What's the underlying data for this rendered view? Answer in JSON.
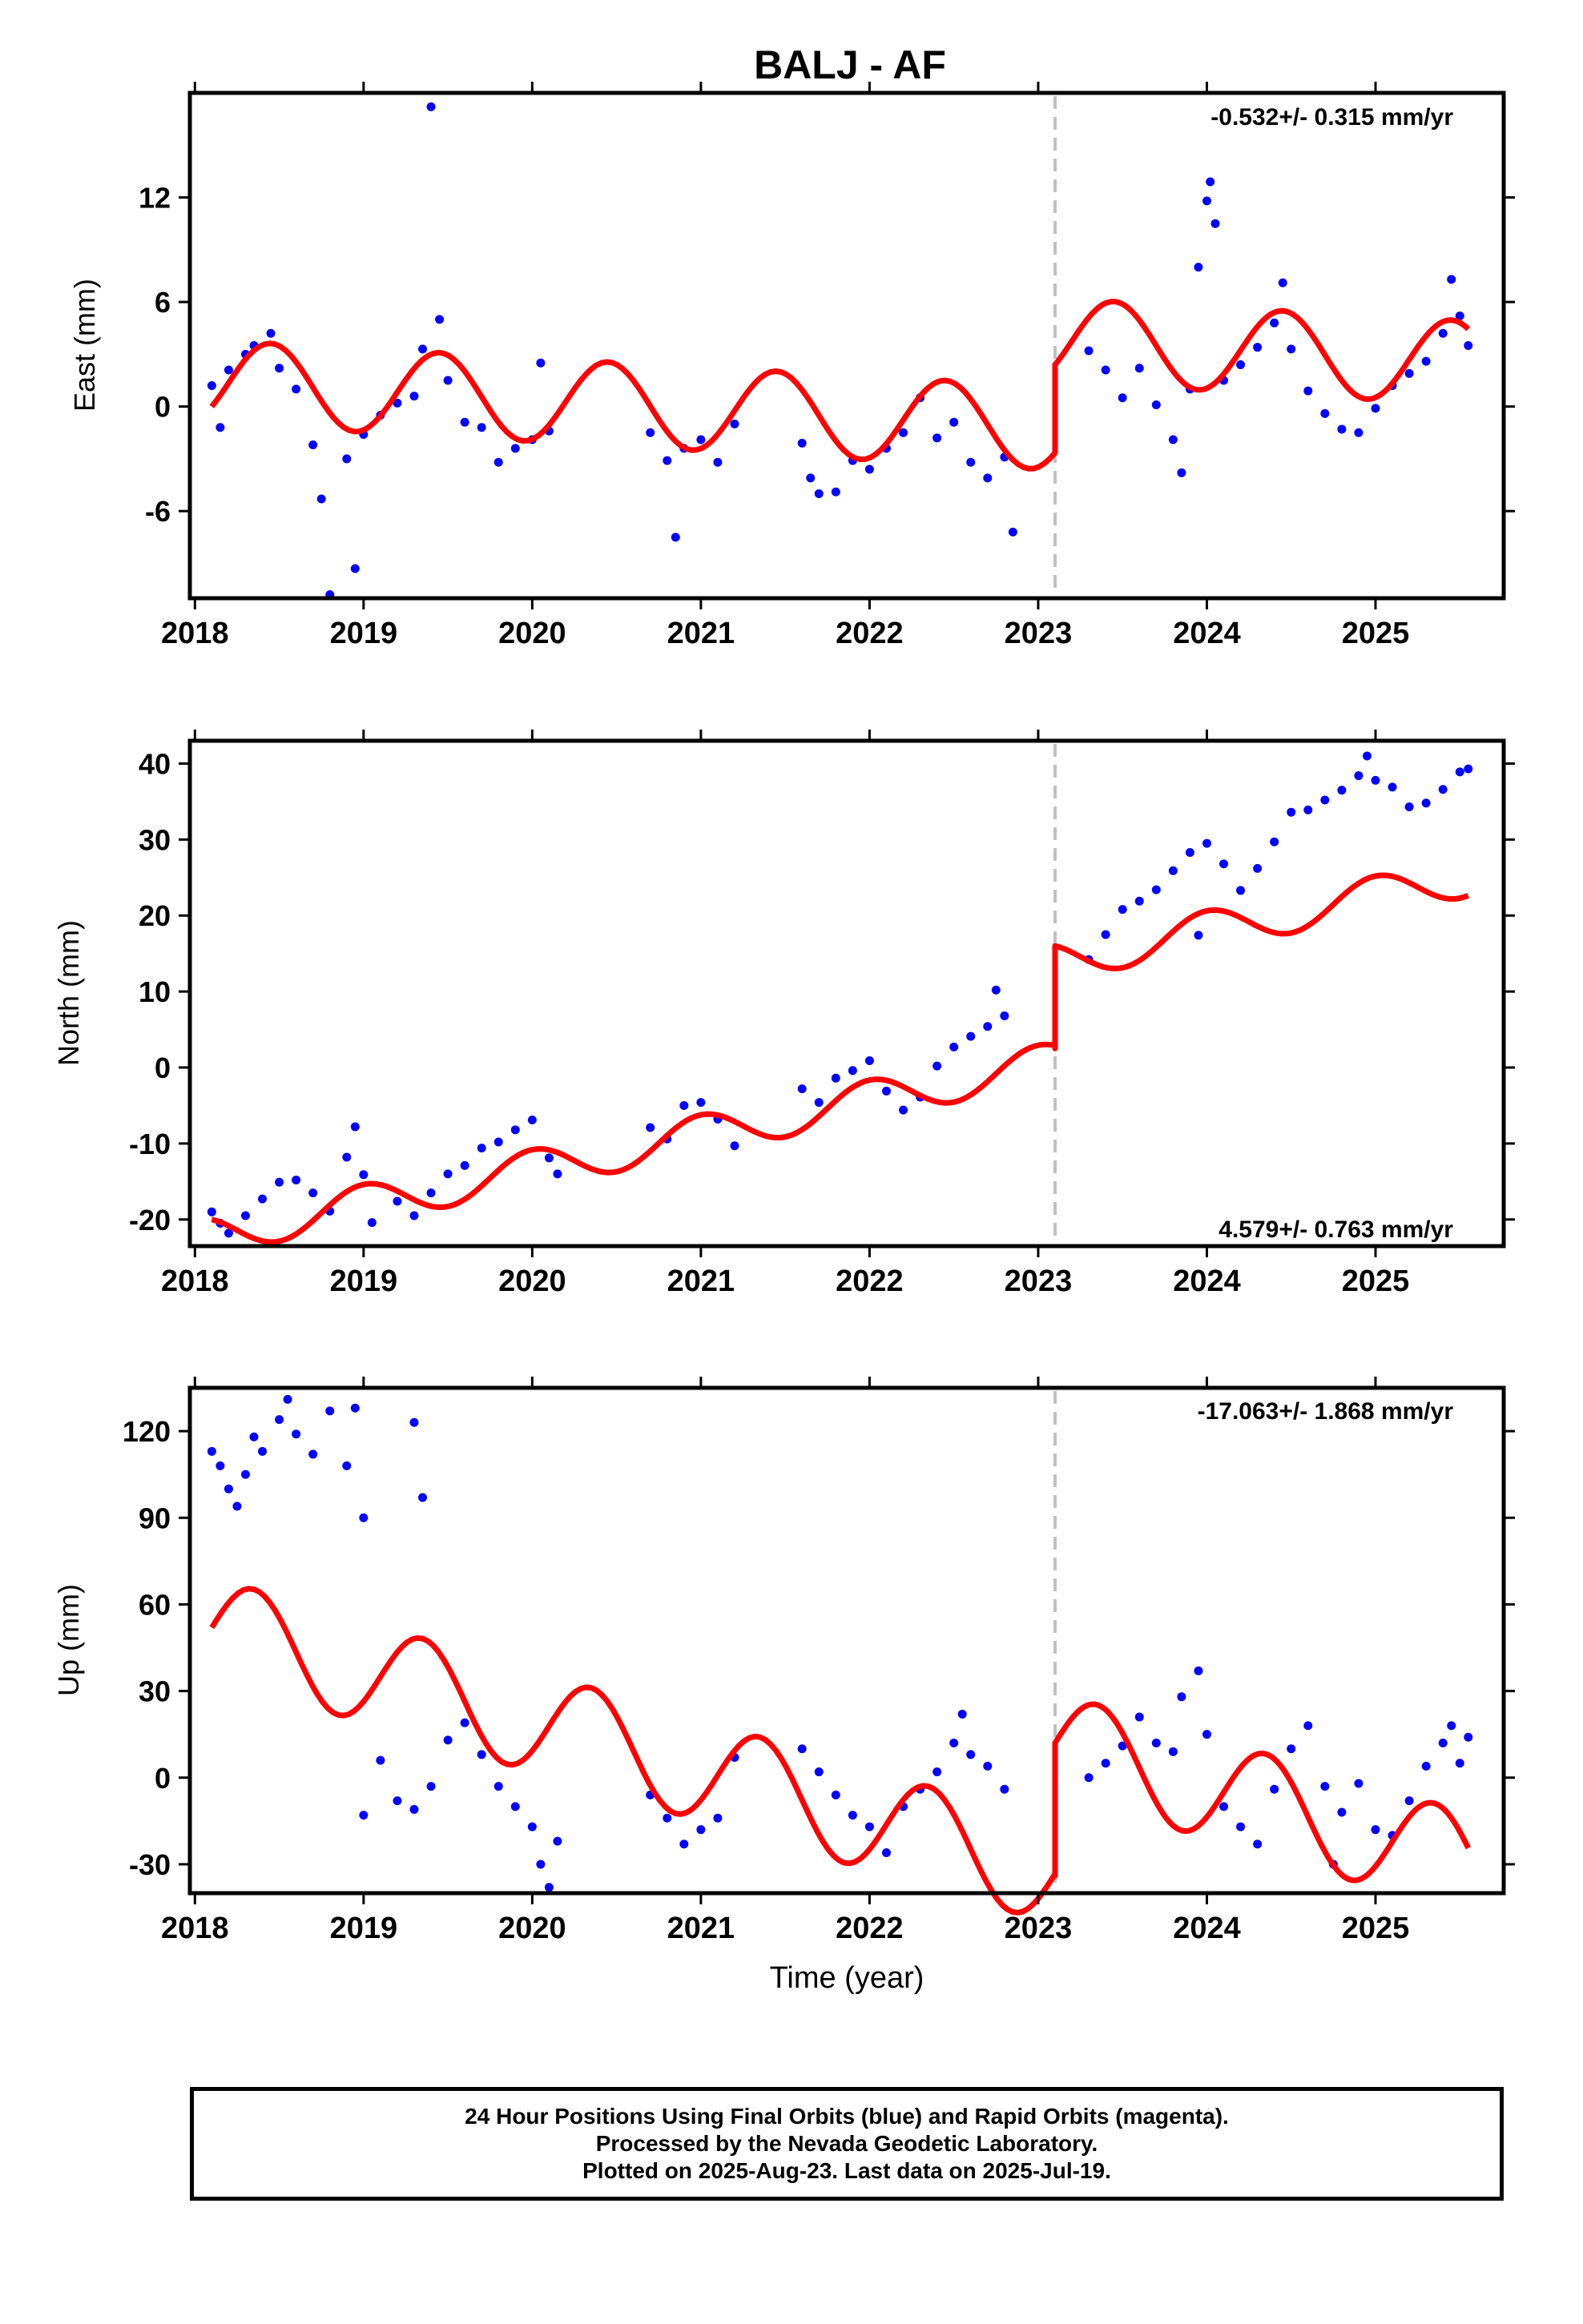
{
  "title": "BALJ - AF",
  "colors": {
    "final": "#0000ff",
    "model": "#ff0000",
    "offset_line": "#c0c0c0"
  },
  "chart_data": [
    {
      "type": "scatter",
      "component": "east",
      "ylabel": "East (mm)",
      "xlim": [
        2017.97,
        2025.76
      ],
      "ylim": [
        -11,
        18
      ],
      "yticks": [
        -6,
        0,
        6,
        12
      ],
      "xticks": [
        2018,
        2019,
        2020,
        2021,
        2022,
        2023,
        2024,
        2025
      ],
      "rate_text": "-0.532+/- 0.315 mm/yr",
      "offset_epoch": 2023.1,
      "model": {
        "pre": {
          "t0": 2018.1,
          "y0": 0.0,
          "slope": -0.532,
          "amp": 2.4,
          "phase": -0.1,
          "t_end": 2023.1,
          "y_end": -2.6
        },
        "post": {
          "t0": 2023.1,
          "y0": 2.4,
          "slope": -0.532,
          "amp": 2.4,
          "phase": -0.1,
          "t_end": 2025.55
        }
      },
      "points": [
        {
          "x": 2018.1,
          "y": 1.2
        },
        {
          "x": 2018.15,
          "y": -1.2
        },
        {
          "x": 2018.2,
          "y": 2.1
        },
        {
          "x": 2018.3,
          "y": 3.0
        },
        {
          "x": 2018.35,
          "y": 3.5
        },
        {
          "x": 2018.45,
          "y": 4.2
        },
        {
          "x": 2018.5,
          "y": 2.2
        },
        {
          "x": 2018.6,
          "y": 1.0
        },
        {
          "x": 2018.7,
          "y": -2.2
        },
        {
          "x": 2018.75,
          "y": -5.3
        },
        {
          "x": 2018.8,
          "y": -10.8
        },
        {
          "x": 2018.9,
          "y": -3.0
        },
        {
          "x": 2018.95,
          "y": -9.3
        },
        {
          "x": 2019.0,
          "y": -1.6
        },
        {
          "x": 2019.1,
          "y": -0.5
        },
        {
          "x": 2019.2,
          "y": 0.2
        },
        {
          "x": 2019.3,
          "y": 0.6
        },
        {
          "x": 2019.35,
          "y": 3.3
        },
        {
          "x": 2019.4,
          "y": 17.2
        },
        {
          "x": 2019.45,
          "y": 5.0
        },
        {
          "x": 2019.5,
          "y": 1.5
        },
        {
          "x": 2019.6,
          "y": -0.9
        },
        {
          "x": 2019.7,
          "y": -1.2
        },
        {
          "x": 2019.8,
          "y": -3.2
        },
        {
          "x": 2019.9,
          "y": -2.4
        },
        {
          "x": 2020.0,
          "y": -1.9
        },
        {
          "x": 2020.05,
          "y": 2.5
        },
        {
          "x": 2020.1,
          "y": -1.4
        },
        {
          "x": 2020.7,
          "y": -1.5
        },
        {
          "x": 2020.8,
          "y": -3.1
        },
        {
          "x": 2020.85,
          "y": -7.5
        },
        {
          "x": 2020.9,
          "y": -2.4
        },
        {
          "x": 2021.0,
          "y": -1.9
        },
        {
          "x": 2021.1,
          "y": -3.2
        },
        {
          "x": 2021.2,
          "y": -1.0
        },
        {
          "x": 2021.6,
          "y": -2.1
        },
        {
          "x": 2021.65,
          "y": -4.1
        },
        {
          "x": 2021.7,
          "y": -5.0
        },
        {
          "x": 2021.8,
          "y": -4.9
        },
        {
          "x": 2021.9,
          "y": -3.1
        },
        {
          "x": 2022.0,
          "y": -3.6
        },
        {
          "x": 2022.1,
          "y": -2.4
        },
        {
          "x": 2022.2,
          "y": -1.5
        },
        {
          "x": 2022.3,
          "y": 0.5
        },
        {
          "x": 2022.4,
          "y": -1.8
        },
        {
          "x": 2022.5,
          "y": -0.9
        },
        {
          "x": 2022.6,
          "y": -3.2
        },
        {
          "x": 2022.7,
          "y": -4.1
        },
        {
          "x": 2022.8,
          "y": -2.9
        },
        {
          "x": 2022.85,
          "y": -7.2
        },
        {
          "x": 2023.3,
          "y": 3.2
        },
        {
          "x": 2023.4,
          "y": 2.1
        },
        {
          "x": 2023.5,
          "y": 0.5
        },
        {
          "x": 2023.6,
          "y": 2.2
        },
        {
          "x": 2023.7,
          "y": 0.1
        },
        {
          "x": 2023.8,
          "y": -1.9
        },
        {
          "x": 2023.85,
          "y": -3.8
        },
        {
          "x": 2023.9,
          "y": 1.0
        },
        {
          "x": 2023.95,
          "y": 8.0
        },
        {
          "x": 2024.0,
          "y": 11.8
        },
        {
          "x": 2024.02,
          "y": 12.9
        },
        {
          "x": 2024.05,
          "y": 10.5
        },
        {
          "x": 2024.1,
          "y": 1.5
        },
        {
          "x": 2024.2,
          "y": 2.4
        },
        {
          "x": 2024.3,
          "y": 3.4
        },
        {
          "x": 2024.4,
          "y": 4.8
        },
        {
          "x": 2024.45,
          "y": 7.1
        },
        {
          "x": 2024.5,
          "y": 3.3
        },
        {
          "x": 2024.6,
          "y": 0.9
        },
        {
          "x": 2024.7,
          "y": -0.4
        },
        {
          "x": 2024.8,
          "y": -1.3
        },
        {
          "x": 2024.9,
          "y": -1.5
        },
        {
          "x": 2025.0,
          "y": -0.1
        },
        {
          "x": 2025.1,
          "y": 1.2
        },
        {
          "x": 2025.2,
          "y": 1.9
        },
        {
          "x": 2025.3,
          "y": 2.6
        },
        {
          "x": 2025.4,
          "y": 4.2
        },
        {
          "x": 2025.45,
          "y": 7.3
        },
        {
          "x": 2025.5,
          "y": 5.2
        },
        {
          "x": 2025.55,
          "y": 3.5
        }
      ]
    },
    {
      "type": "scatter",
      "component": "north",
      "ylabel": "North (mm)",
      "xlim": [
        2017.97,
        2025.76
      ],
      "ylim": [
        -23.5,
        43
      ],
      "yticks": [
        -20,
        -10,
        0,
        10,
        20,
        30,
        40
      ],
      "xticks": [
        2018,
        2019,
        2020,
        2021,
        2022,
        2023,
        2024,
        2025
      ],
      "rate_text": "4.579+/- 0.763 mm/yr",
      "offset_epoch": 2023.1,
      "model": {
        "pre": {
          "t0": 2018.1,
          "y0": -20.0,
          "slope": 4.579,
          "amp": 2.6,
          "phase": 0.35,
          "t_end": 2023.1,
          "y_end": 2.5
        },
        "post": {
          "t0": 2023.1,
          "y0": 16.0,
          "slope": 4.579,
          "amp": 2.6,
          "phase": 0.35,
          "t_end": 2025.55
        }
      },
      "points": [
        {
          "x": 2018.1,
          "y": -19.0
        },
        {
          "x": 2018.15,
          "y": -20.5
        },
        {
          "x": 2018.2,
          "y": -21.8
        },
        {
          "x": 2018.3,
          "y": -19.5
        },
        {
          "x": 2018.4,
          "y": -17.3
        },
        {
          "x": 2018.5,
          "y": -15.1
        },
        {
          "x": 2018.6,
          "y": -14.8
        },
        {
          "x": 2018.7,
          "y": -16.5
        },
        {
          "x": 2018.8,
          "y": -18.9
        },
        {
          "x": 2018.9,
          "y": -11.8
        },
        {
          "x": 2018.95,
          "y": -7.8
        },
        {
          "x": 2019.0,
          "y": -14.1
        },
        {
          "x": 2019.05,
          "y": -20.4
        },
        {
          "x": 2019.2,
          "y": -17.6
        },
        {
          "x": 2019.3,
          "y": -19.5
        },
        {
          "x": 2019.4,
          "y": -16.5
        },
        {
          "x": 2019.5,
          "y": -14.0
        },
        {
          "x": 2019.6,
          "y": -12.9
        },
        {
          "x": 2019.7,
          "y": -10.6
        },
        {
          "x": 2019.8,
          "y": -9.8
        },
        {
          "x": 2019.9,
          "y": -8.2
        },
        {
          "x": 2020.0,
          "y": -6.9
        },
        {
          "x": 2020.1,
          "y": -11.9
        },
        {
          "x": 2020.15,
          "y": -14.0
        },
        {
          "x": 2020.7,
          "y": -7.9
        },
        {
          "x": 2020.8,
          "y": -9.4
        },
        {
          "x": 2020.9,
          "y": -5.0
        },
        {
          "x": 2021.0,
          "y": -4.6
        },
        {
          "x": 2021.1,
          "y": -6.8
        },
        {
          "x": 2021.2,
          "y": -10.3
        },
        {
          "x": 2021.6,
          "y": -2.8
        },
        {
          "x": 2021.7,
          "y": -4.6
        },
        {
          "x": 2021.8,
          "y": -1.4
        },
        {
          "x": 2021.9,
          "y": -0.4
        },
        {
          "x": 2022.0,
          "y": 0.9
        },
        {
          "x": 2022.1,
          "y": -3.1
        },
        {
          "x": 2022.2,
          "y": -5.6
        },
        {
          "x": 2022.3,
          "y": -3.9
        },
        {
          "x": 2022.4,
          "y": 0.2
        },
        {
          "x": 2022.5,
          "y": 2.7
        },
        {
          "x": 2022.6,
          "y": 4.1
        },
        {
          "x": 2022.7,
          "y": 5.4
        },
        {
          "x": 2022.75,
          "y": 10.2
        },
        {
          "x": 2022.8,
          "y": 6.8
        },
        {
          "x": 2023.3,
          "y": 14.2
        },
        {
          "x": 2023.4,
          "y": 17.5
        },
        {
          "x": 2023.5,
          "y": 20.8
        },
        {
          "x": 2023.6,
          "y": 21.9
        },
        {
          "x": 2023.7,
          "y": 23.4
        },
        {
          "x": 2023.8,
          "y": 25.9
        },
        {
          "x": 2023.9,
          "y": 28.3
        },
        {
          "x": 2023.95,
          "y": 17.4
        },
        {
          "x": 2024.0,
          "y": 29.5
        },
        {
          "x": 2024.1,
          "y": 26.8
        },
        {
          "x": 2024.2,
          "y": 23.3
        },
        {
          "x": 2024.3,
          "y": 26.2
        },
        {
          "x": 2024.4,
          "y": 29.7
        },
        {
          "x": 2024.5,
          "y": 33.6
        },
        {
          "x": 2024.6,
          "y": 33.9
        },
        {
          "x": 2024.7,
          "y": 35.2
        },
        {
          "x": 2024.8,
          "y": 36.5
        },
        {
          "x": 2024.9,
          "y": 38.4
        },
        {
          "x": 2024.95,
          "y": 41.0
        },
        {
          "x": 2025.0,
          "y": 37.8
        },
        {
          "x": 2025.1,
          "y": 36.9
        },
        {
          "x": 2025.2,
          "y": 34.3
        },
        {
          "x": 2025.3,
          "y": 34.8
        },
        {
          "x": 2025.4,
          "y": 36.6
        },
        {
          "x": 2025.5,
          "y": 38.9
        },
        {
          "x": 2025.55,
          "y": 39.3
        }
      ]
    },
    {
      "type": "scatter",
      "component": "up",
      "ylabel": "Up (mm)",
      "xlabel": "Time (year)",
      "xlim": [
        2017.97,
        2025.76
      ],
      "ylim": [
        -40,
        135
      ],
      "yticks": [
        -30,
        0,
        30,
        60,
        90,
        120
      ],
      "xticks": [
        2018,
        2019,
        2020,
        2021,
        2022,
        2023,
        2024,
        2025
      ],
      "rate_text": "-17.063+/- 1.868 mm/yr",
      "offset_epoch": 2023.1,
      "model": {
        "pre": {
          "t0": 2018.1,
          "y0": 52.0,
          "slope": -17.063,
          "amp": 17.5,
          "phase": 0.0,
          "t_end": 2023.1,
          "y_end": -34.0
        },
        "post": {
          "t0": 2023.1,
          "y0": 12.0,
          "slope": -17.063,
          "amp": 17.5,
          "phase": 0.0,
          "t_end": 2025.55
        }
      },
      "points": [
        {
          "x": 2018.1,
          "y": 113
        },
        {
          "x": 2018.15,
          "y": 108
        },
        {
          "x": 2018.2,
          "y": 100
        },
        {
          "x": 2018.25,
          "y": 94
        },
        {
          "x": 2018.3,
          "y": 105
        },
        {
          "x": 2018.35,
          "y": 118
        },
        {
          "x": 2018.4,
          "y": 113
        },
        {
          "x": 2018.5,
          "y": 124
        },
        {
          "x": 2018.55,
          "y": 131
        },
        {
          "x": 2018.6,
          "y": 119
        },
        {
          "x": 2018.7,
          "y": 112
        },
        {
          "x": 2018.8,
          "y": 127
        },
        {
          "x": 2018.9,
          "y": 108
        },
        {
          "x": 2018.95,
          "y": 128
        },
        {
          "x": 2019.0,
          "y": 90
        },
        {
          "x": 2019.3,
          "y": 123
        },
        {
          "x": 2019.35,
          "y": 97
        },
        {
          "x": 2019.0,
          "y": -13
        },
        {
          "x": 2019.1,
          "y": 6
        },
        {
          "x": 2019.2,
          "y": -8
        },
        {
          "x": 2019.3,
          "y": -11
        },
        {
          "x": 2019.4,
          "y": -3
        },
        {
          "x": 2019.5,
          "y": 13
        },
        {
          "x": 2019.6,
          "y": 19
        },
        {
          "x": 2019.7,
          "y": 8
        },
        {
          "x": 2019.8,
          "y": -3
        },
        {
          "x": 2019.9,
          "y": -10
        },
        {
          "x": 2020.0,
          "y": -17
        },
        {
          "x": 2020.05,
          "y": -30
        },
        {
          "x": 2020.1,
          "y": -38
        },
        {
          "x": 2020.15,
          "y": -22
        },
        {
          "x": 2020.7,
          "y": -6
        },
        {
          "x": 2020.8,
          "y": -14
        },
        {
          "x": 2020.9,
          "y": -23
        },
        {
          "x": 2021.0,
          "y": -18
        },
        {
          "x": 2021.1,
          "y": -14
        },
        {
          "x": 2021.2,
          "y": 7
        },
        {
          "x": 2021.6,
          "y": 10
        },
        {
          "x": 2021.7,
          "y": 2
        },
        {
          "x": 2021.8,
          "y": -6
        },
        {
          "x": 2021.9,
          "y": -13
        },
        {
          "x": 2022.0,
          "y": -17
        },
        {
          "x": 2022.1,
          "y": -26
        },
        {
          "x": 2022.2,
          "y": -10
        },
        {
          "x": 2022.3,
          "y": -4
        },
        {
          "x": 2022.4,
          "y": 2
        },
        {
          "x": 2022.5,
          "y": 12
        },
        {
          "x": 2022.55,
          "y": 22
        },
        {
          "x": 2022.6,
          "y": 8
        },
        {
          "x": 2022.7,
          "y": 4
        },
        {
          "x": 2022.8,
          "y": -4
        },
        {
          "x": 2023.3,
          "y": 0
        },
        {
          "x": 2023.4,
          "y": 5
        },
        {
          "x": 2023.5,
          "y": 11
        },
        {
          "x": 2023.6,
          "y": 21
        },
        {
          "x": 2023.7,
          "y": 12
        },
        {
          "x": 2023.8,
          "y": 9
        },
        {
          "x": 2023.85,
          "y": 28
        },
        {
          "x": 2023.95,
          "y": 37
        },
        {
          "x": 2024.0,
          "y": 15
        },
        {
          "x": 2024.1,
          "y": -10
        },
        {
          "x": 2024.2,
          "y": -17
        },
        {
          "x": 2024.3,
          "y": -23
        },
        {
          "x": 2024.4,
          "y": -4
        },
        {
          "x": 2024.5,
          "y": 10
        },
        {
          "x": 2024.6,
          "y": 18
        },
        {
          "x": 2024.7,
          "y": -3
        },
        {
          "x": 2024.75,
          "y": -30
        },
        {
          "x": 2024.8,
          "y": -12
        },
        {
          "x": 2024.9,
          "y": -2
        },
        {
          "x": 2025.0,
          "y": -18
        },
        {
          "x": 2025.1,
          "y": -20
        },
        {
          "x": 2025.2,
          "y": -8
        },
        {
          "x": 2025.3,
          "y": 4
        },
        {
          "x": 2025.4,
          "y": 12
        },
        {
          "x": 2025.45,
          "y": 18
        },
        {
          "x": 2025.5,
          "y": 5
        },
        {
          "x": 2025.55,
          "y": 14
        }
      ]
    }
  ],
  "caption": {
    "line1": "24 Hour Positions Using Final Orbits (blue) and Rapid Orbits (magenta).",
    "line2": "Processed by the Nevada Geodetic Laboratory.",
    "line3": "Plotted on 2025-Aug-23. Last data on 2025-Jul-19."
  }
}
